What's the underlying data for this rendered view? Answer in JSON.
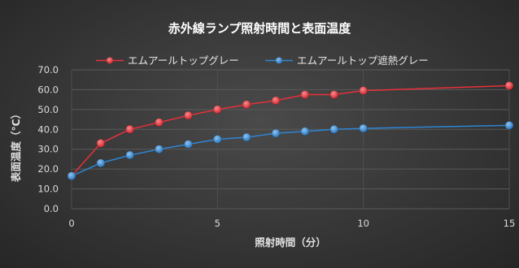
{
  "chart_data": {
    "type": "line",
    "title": "赤外線ランプ照射時間と表面温度",
    "xlabel": "照射時間（分）",
    "ylabel": "表面温度（℃）",
    "xlim": [
      0,
      15
    ],
    "ylim": [
      0,
      70
    ],
    "x_ticks": [
      "0",
      "5",
      "10",
      "15"
    ],
    "y_ticks": [
      "0.0",
      "10.0",
      "20.0",
      "30.0",
      "40.0",
      "50.0",
      "60.0",
      "70.0"
    ],
    "grid": "both",
    "legend_position": "top",
    "x": [
      0,
      1,
      2,
      3,
      4,
      5,
      6,
      7,
      8,
      9,
      10,
      15
    ],
    "series": [
      {
        "name": "エムアールトップグレー",
        "color": "#e8303a",
        "values": [
          16.5,
          33.0,
          40.0,
          43.5,
          47.0,
          50.0,
          52.5,
          54.5,
          57.5,
          57.5,
          59.5,
          62.0
        ]
      },
      {
        "name": "エムアールトップ遮熱グレー",
        "color": "#2e86d6",
        "values": [
          16.5,
          23.0,
          27.0,
          30.0,
          32.5,
          35.0,
          36.0,
          38.0,
          39.0,
          40.0,
          40.5,
          42.0
        ]
      }
    ]
  }
}
